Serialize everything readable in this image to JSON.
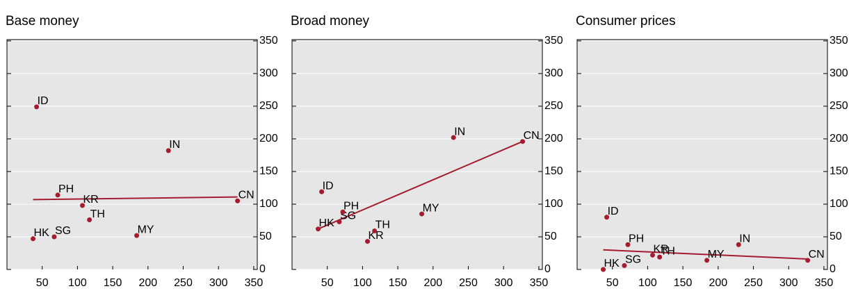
{
  "chart_data": [
    {
      "type": "scatter",
      "title": "Base money",
      "color": "#a51c30",
      "background": "#e6e6e6",
      "grid": true,
      "labels": [
        "HK",
        "SG",
        "PH",
        "KR",
        "TH",
        "MY",
        "IN",
        "CN",
        "ID"
      ],
      "x": [
        37,
        67,
        72,
        107,
        117,
        184,
        229,
        327,
        42
      ],
      "values": [
        47,
        50,
        114,
        98,
        76,
        52,
        182,
        105,
        249
      ],
      "fit": {
        "x": [
          37,
          327
        ],
        "y": [
          107,
          111
        ]
      },
      "xlim": [
        0,
        355
      ],
      "ylim": [
        0,
        352
      ],
      "xticks": [
        50,
        100,
        150,
        200,
        250,
        300,
        350
      ],
      "yticks": [
        0,
        50,
        100,
        150,
        200,
        250,
        300,
        350
      ]
    },
    {
      "type": "scatter",
      "title": "Broad money",
      "color": "#a51c30",
      "background": "#e6e6e6",
      "grid": true,
      "labels": [
        "HK",
        "SG",
        "PH",
        "KR",
        "TH",
        "MY",
        "IN",
        "CN",
        "ID"
      ],
      "x": [
        37,
        67,
        72,
        107,
        117,
        184,
        229,
        327,
        42
      ],
      "values": [
        62,
        73,
        88,
        43,
        59,
        85,
        202,
        196,
        119
      ],
      "fit": {
        "x": [
          37,
          327
        ],
        "y": [
          62,
          196
        ]
      },
      "xlim": [
        0,
        355
      ],
      "ylim": [
        0,
        352
      ],
      "xticks": [
        50,
        100,
        150,
        200,
        250,
        300,
        350
      ],
      "yticks": [
        0,
        50,
        100,
        150,
        200,
        250,
        300,
        350
      ]
    },
    {
      "type": "scatter",
      "title": "Consumer prices",
      "color": "#a51c30",
      "background": "#e6e6e6",
      "grid": true,
      "labels": [
        "HK",
        "SG",
        "PH",
        "KR",
        "TH",
        "MY",
        "IN",
        "CN",
        "ID"
      ],
      "x": [
        37,
        67,
        72,
        107,
        117,
        184,
        229,
        327,
        42
      ],
      "values": [
        0,
        6,
        38,
        22,
        19,
        14,
        38,
        14,
        80
      ],
      "fit": {
        "x": [
          37,
          327
        ],
        "y": [
          30,
          16
        ]
      },
      "xlim": [
        0,
        355
      ],
      "ylim": [
        0,
        352
      ],
      "xticks": [
        50,
        100,
        150,
        200,
        250,
        300,
        350
      ],
      "yticks": [
        0,
        50,
        100,
        150,
        200,
        250,
        300,
        350
      ]
    }
  ]
}
